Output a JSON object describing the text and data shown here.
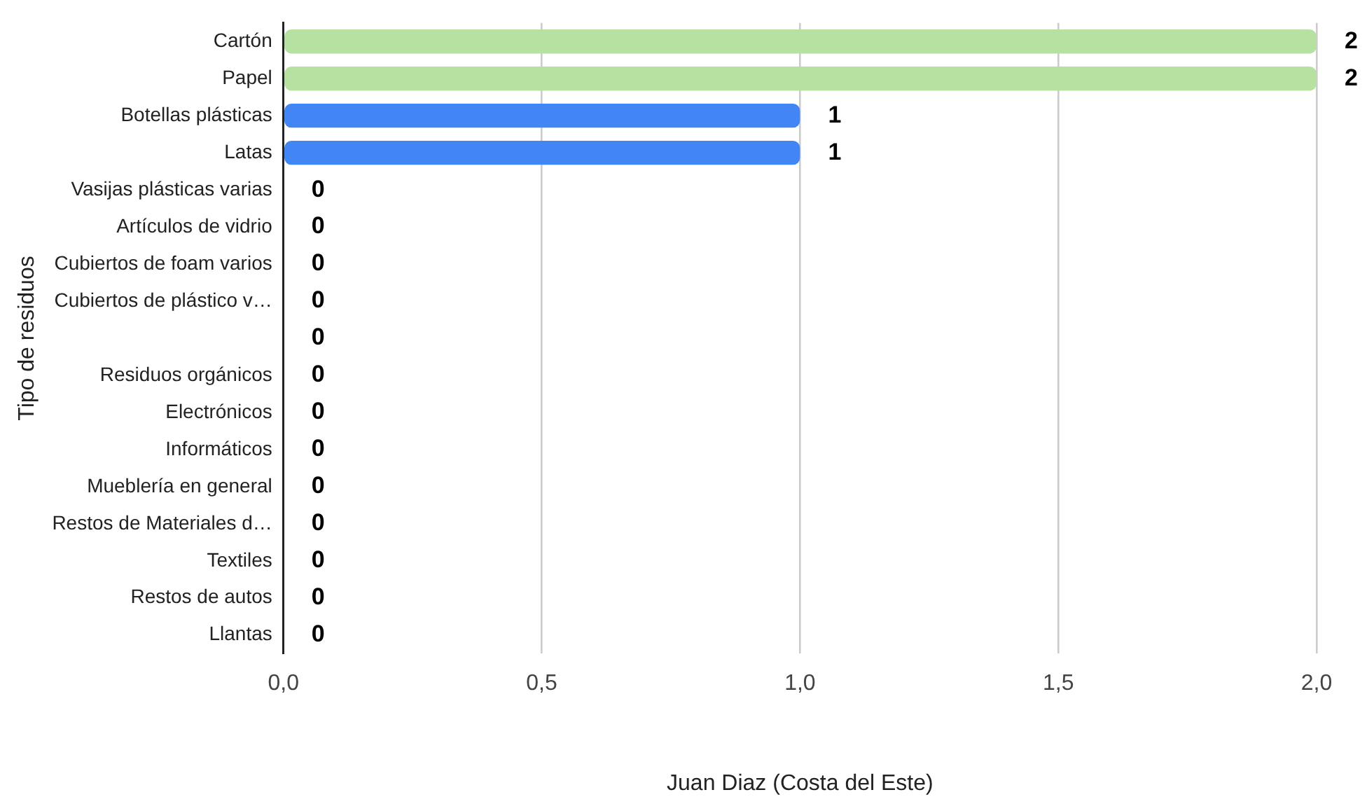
{
  "chart_data": {
    "type": "bar",
    "orientation": "horizontal",
    "categories": [
      "Cartón",
      "Papel",
      "Botellas plásticas",
      "Latas",
      "Vasijas plásticas varias",
      "Artículos de vidrio",
      "Cubiertos de foam varios",
      "Cubiertos de plástico v…",
      null,
      "Residuos orgánicos",
      "Electrónicos",
      "Informáticos",
      "Mueblería en general",
      "Restos de Materiales d…",
      "Textiles",
      "Restos de autos",
      "Llantas"
    ],
    "values": [
      2,
      2,
      1,
      1,
      0,
      0,
      0,
      0,
      0,
      0,
      0,
      0,
      0,
      0,
      0,
      0,
      0
    ],
    "colors": [
      "#b7e1a1",
      "#b7e1a1",
      "#4285f4",
      "#4285f4",
      "#4285f4",
      "#4285f4",
      "#4285f4",
      "#4285f4",
      "#4285f4",
      "#4285f4",
      "#4285f4",
      "#4285f4",
      "#4285f4",
      "#4285f4",
      "#4285f4",
      "#4285f4",
      "#4285f4"
    ],
    "xlabel": "Juan Diaz (Costa del Este)",
    "ylabel": "Tipo de residuos",
    "xlim": [
      0,
      2
    ],
    "xticks": [
      {
        "value": 0,
        "label": "0,0"
      },
      {
        "value": 0.5,
        "label": "0,5"
      },
      {
        "value": 1,
        "label": "1,0"
      },
      {
        "value": 1.5,
        "label": "1,5"
      },
      {
        "value": 2,
        "label": "2,0"
      }
    ],
    "grid": "x",
    "legend": false,
    "data_labels": true
  }
}
